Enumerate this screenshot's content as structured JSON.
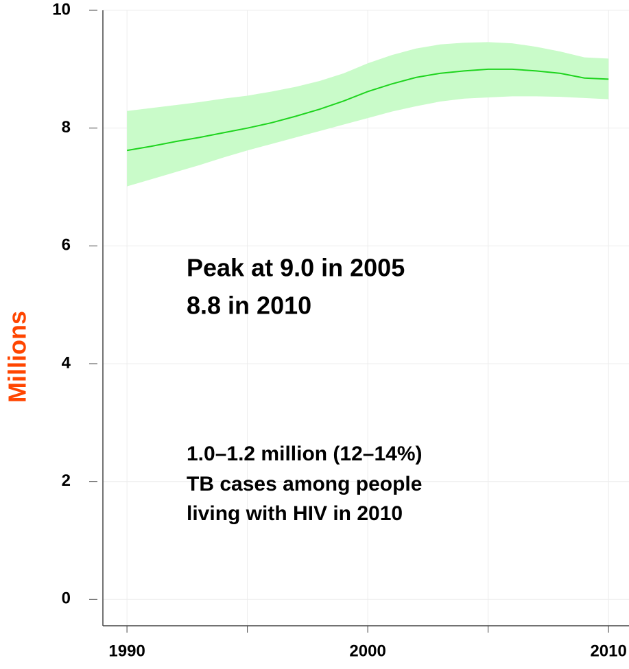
{
  "chart_data": {
    "type": "line",
    "y_label": "Millions",
    "y_label_color": "#ff4500",
    "x": [
      1990,
      1991,
      1992,
      1993,
      1994,
      1995,
      1996,
      1997,
      1998,
      1999,
      2000,
      2001,
      2002,
      2003,
      2004,
      2005,
      2006,
      2007,
      2008,
      2009,
      2010
    ],
    "values": [
      7.62,
      7.69,
      7.77,
      7.84,
      7.92,
      8.0,
      8.09,
      8.2,
      8.32,
      8.46,
      8.62,
      8.75,
      8.86,
      8.93,
      8.97,
      9.0,
      9.0,
      8.97,
      8.93,
      8.85,
      8.83
    ],
    "upper": [
      8.29,
      8.34,
      8.39,
      8.44,
      8.5,
      8.55,
      8.62,
      8.7,
      8.8,
      8.93,
      9.1,
      9.24,
      9.35,
      9.42,
      9.45,
      9.46,
      9.44,
      9.38,
      9.3,
      9.2,
      9.18
    ],
    "lower": [
      7.01,
      7.13,
      7.25,
      7.37,
      7.5,
      7.62,
      7.73,
      7.84,
      7.95,
      8.06,
      8.17,
      8.28,
      8.37,
      8.45,
      8.5,
      8.52,
      8.54,
      8.54,
      8.53,
      8.51,
      8.49
    ],
    "color": "#1ed41e",
    "band_color": "#c9fbc9",
    "xlim": [
      1989,
      2010.85
    ],
    "ylim": [
      -0.45,
      10
    ],
    "xticks": [
      1990,
      2000,
      2010
    ],
    "x_minor_ticks": [
      1995,
      2005
    ],
    "yticks": [
      0,
      2,
      4,
      6,
      8,
      10
    ],
    "grid": true,
    "annotations": [
      "Peak at 9.0 in 2005",
      "8.8 in 2010",
      "1.0–1.2 million (12–14%)",
      "TB cases among people",
      "living with HIV in 2010"
    ]
  }
}
